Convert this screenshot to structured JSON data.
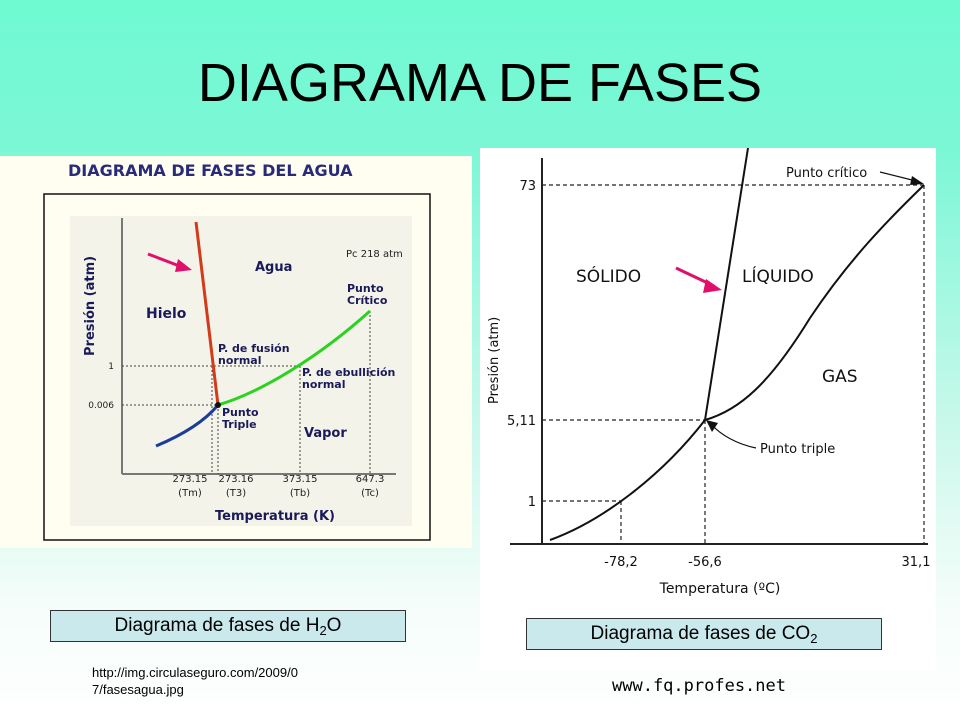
{
  "slide": {
    "title": "DIAGRAMA DE FASES"
  },
  "h2o_diagram": {
    "header": "DIAGRAMA DE FASES DEL AGUA",
    "y_axis_label": "Presión (atm)",
    "x_axis_label": "Temperatura (K)",
    "y_ticks": [
      "1",
      "0.006"
    ],
    "x_ticks": [
      "273.15",
      "273.16",
      "373.15",
      "647.3"
    ],
    "x_tick_symbols": [
      "(Tm)",
      "(T3)",
      "(Tb)",
      "(Tc)"
    ],
    "regions": {
      "solid": "Hielo",
      "liquid": "Agua",
      "vapor": "Vapor"
    },
    "labels": {
      "critical_pressure": "Pc 218 atm",
      "critical_point_line1": "Punto",
      "critical_point_line2": "Crítico",
      "fusion_line1": "P. de fusión",
      "fusion_line2": "normal",
      "boiling_line1": "P. de ebullición",
      "boiling_line2": "normal",
      "triple_line1": "Punto",
      "triple_line2": "Triple"
    },
    "colors": {
      "fusion_curve": "#d23a1a",
      "vaporization_curve": "#2bd21f",
      "sublimation_curve": "#1b3c9a",
      "arrow": "#e0106a"
    }
  },
  "co2_diagram": {
    "y_axis_label": "Presión (atm)",
    "x_axis_label": "Temperatura (ºC)",
    "y_ticks": [
      "73",
      "5,11",
      "1"
    ],
    "x_ticks": [
      "-78,2",
      "-56,6",
      "31,1"
    ],
    "regions": {
      "solid": "SÓLIDO",
      "liquid": "LÍQUIDO",
      "gas": "GAS"
    },
    "labels": {
      "critical_point": "Punto crítico",
      "triple_point": "Punto triple"
    },
    "colors": {
      "arrow": "#e0106a"
    }
  },
  "captions": {
    "h2o_prefix": "Diagrama de fases de H",
    "h2o_sub": "2",
    "h2o_suffix": "O",
    "co2_prefix": "Diagrama de fases de CO",
    "co2_sub": "2"
  },
  "source": {
    "url_line1": "http://img.circulaseguro.com/2009/0",
    "url_line2": "7/fasesagua.jpg",
    "website": "www.fq.profes.net"
  }
}
